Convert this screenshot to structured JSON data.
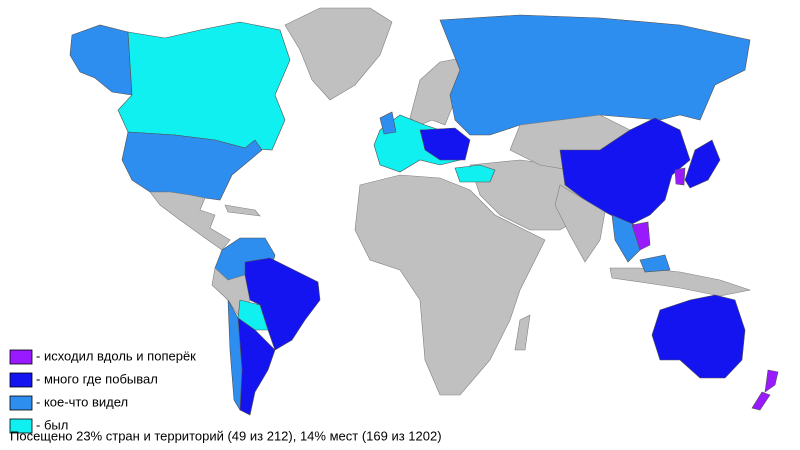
{
  "legend": [
    {
      "label": "- исходил вдоль и поперёк",
      "color": "#9a1aff"
    },
    {
      "label": "- много где побывал",
      "color": "#1414f0"
    },
    {
      "label": "- кое-что видел",
      "color": "#2e8ef0"
    },
    {
      "label": "- был",
      "color": "#10f0f0"
    }
  ],
  "footer": "Посещено 23% стран и территорий (49 из 212), 14% мест (169 из 1202)"
}
